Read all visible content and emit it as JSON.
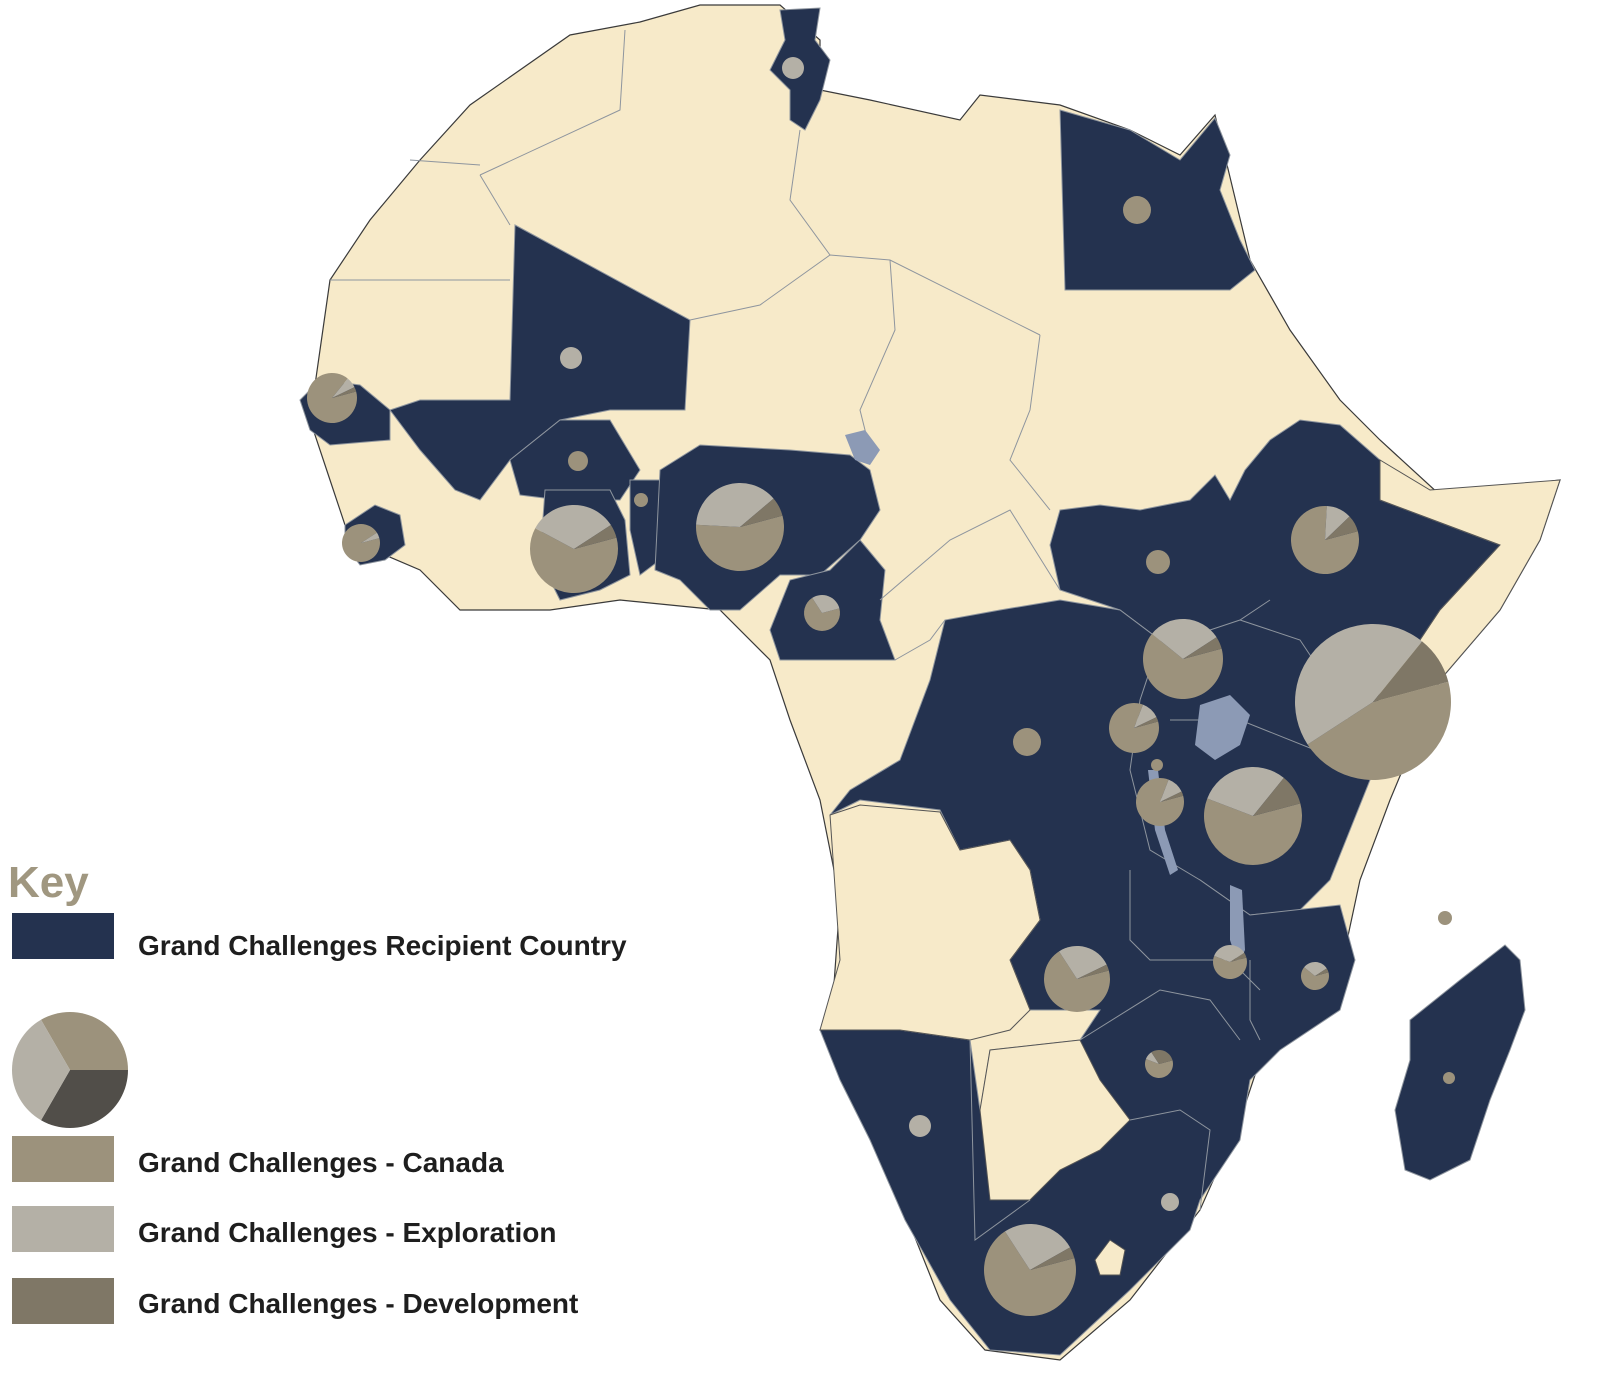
{
  "legend": {
    "title": "Key",
    "recipient_label": "Grand Challenges Recipient Country",
    "canada_label": "Grand Challenges - Canada",
    "exploration_label": "Grand Challenges - Exploration",
    "development_label": "Grand Challenges - Development"
  },
  "colors": {
    "recipient": "#24324f",
    "non_recipient": "#f7eac9",
    "border": "#8e959e",
    "water": "#8c9ab5",
    "canada": "#9c927c",
    "exploration": "#b4b0a6",
    "development": "#7f7766",
    "legend_development_pie": "#514e49",
    "key_title": "#a09780"
  },
  "map_layers": {
    "recipient_regions": [
      "mali-senegal-burkina-west",
      "tunisia",
      "egypt",
      "west-africa-coast",
      "nigeria",
      "cameroon",
      "ethiopia-south-sudan-east",
      "central-southern-africa",
      "madagascar"
    ],
    "non_recipient_regions": [
      "north-africa",
      "sahel",
      "angola",
      "botswana",
      "somalia",
      "central-african-gabon"
    ]
  },
  "chart_data": {
    "type": "pie",
    "series_names": [
      "Grand Challenges - Canada",
      "Grand Challenges - Exploration",
      "Grand Challenges - Development"
    ],
    "pies": [
      {
        "id": "kenya",
        "size": 78,
        "values": [
          0.45,
          0.45,
          0.1
        ]
      },
      {
        "id": "tanzania",
        "size": 49,
        "values": [
          0.6,
          0.3,
          0.1
        ]
      },
      {
        "id": "nigeria",
        "size": 44,
        "values": [
          0.55,
          0.38,
          0.07
        ]
      },
      {
        "id": "ghana",
        "size": 44,
        "values": [
          0.62,
          0.33,
          0.05
        ]
      },
      {
        "id": "south-africa",
        "size": 46,
        "values": [
          0.7,
          0.26,
          0.04
        ]
      },
      {
        "id": "uganda",
        "size": 40,
        "values": [
          0.65,
          0.3,
          0.05
        ]
      },
      {
        "id": "ethiopia",
        "size": 34,
        "values": [
          0.8,
          0.12,
          0.08
        ]
      },
      {
        "id": "zambia",
        "size": 33,
        "values": [
          0.7,
          0.27,
          0.03
        ]
      },
      {
        "id": "senegal",
        "size": 25,
        "values": [
          0.9,
          0.07,
          0.03
        ]
      },
      {
        "id": "rwanda",
        "size": 25,
        "values": [
          0.85,
          0.12,
          0.03
        ]
      },
      {
        "id": "burundi",
        "size": 24,
        "values": [
          0.85,
          0.12,
          0.03
        ]
      },
      {
        "id": "sierra-leone",
        "size": 19,
        "values": [
          0.95,
          0.05,
          0.0
        ]
      },
      {
        "id": "cameroon",
        "size": 18,
        "values": [
          0.7,
          0.3,
          0.0
        ]
      },
      {
        "id": "malawi",
        "size": 17,
        "values": [
          0.6,
          0.35,
          0.05
        ]
      },
      {
        "id": "mozambique",
        "size": 14,
        "values": [
          0.65,
          0.3,
          0.05
        ]
      },
      {
        "id": "zimbabwe",
        "size": 14,
        "values": [
          0.6,
          0.1,
          0.3
        ]
      },
      {
        "id": "egypt",
        "size": 14,
        "values": [
          1.0,
          0.0,
          0.0
        ]
      },
      {
        "id": "dr-congo",
        "size": 14,
        "values": [
          1.0,
          0.0,
          0.0
        ]
      },
      {
        "id": "south-sudan",
        "size": 12,
        "values": [
          1.0,
          0.0,
          0.0
        ]
      },
      {
        "id": "mali",
        "size": 11,
        "values": [
          0.0,
          1.0,
          0.0
        ]
      },
      {
        "id": "tunisia",
        "size": 11,
        "values": [
          0.0,
          1.0,
          0.0
        ]
      },
      {
        "id": "namibia",
        "size": 11,
        "values": [
          0.0,
          1.0,
          0.0
        ]
      },
      {
        "id": "burkina-faso",
        "size": 10,
        "values": [
          1.0,
          0.0,
          0.0
        ]
      },
      {
        "id": "benin",
        "size": 7,
        "values": [
          1.0,
          0.0,
          0.0
        ]
      },
      {
        "id": "lesotho-swaziland",
        "size": 9,
        "values": [
          0.0,
          1.0,
          0.0
        ]
      },
      {
        "id": "comoros",
        "size": 7,
        "values": [
          1.0,
          0.0,
          0.0
        ]
      },
      {
        "id": "madagascar",
        "size": 6,
        "values": [
          1.0,
          0.0,
          0.0
        ]
      },
      {
        "id": "rwanda-small",
        "size": 6,
        "values": [
          1.0,
          0.0,
          0.0
        ]
      }
    ],
    "legend_pie": {
      "values": [
        0.3333,
        0.3333,
        0.3334
      ]
    },
    "title": "",
    "xlabel": "",
    "ylabel": ""
  }
}
